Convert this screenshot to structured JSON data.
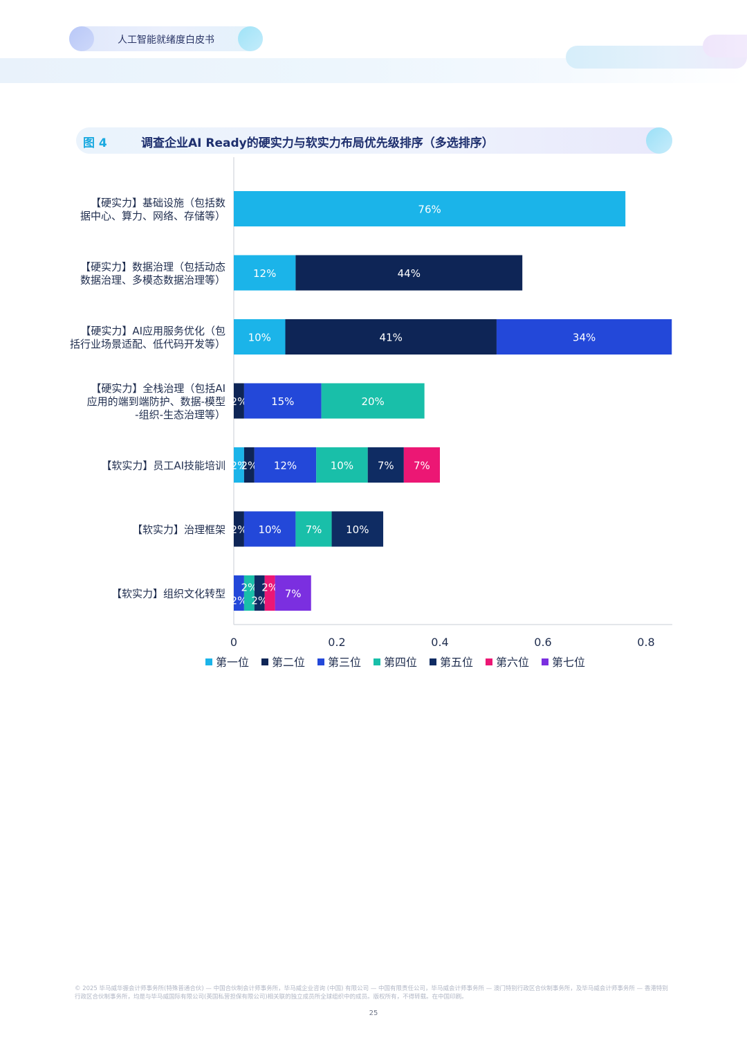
{
  "header": {
    "title": "人工智能就绪度白皮书"
  },
  "figure": {
    "label": "图 4",
    "title": "调查企业AI Ready的硬实力与软实力布局优先级排序（多选排序）"
  },
  "colors": {
    "series": [
      "#1bb4e9",
      "#0e2556",
      "#2348d9",
      "#19bfa9",
      "#0f2c63",
      "#ec1774",
      "#7b2fe0"
    ],
    "label_text": "#ffffff",
    "axis_text": "#1f2d4e",
    "axis_line": "#c9ccd4"
  },
  "chart_data": {
    "type": "bar",
    "orientation": "horizontal",
    "stacked": true,
    "categories": [
      [
        "【硬实力】基础设施（包括数",
        "据中心、算力、网络、存储等）"
      ],
      [
        "【硬实力】数据治理（包括动态",
        "数据治理、多模态数据治理等）"
      ],
      [
        "【硬实力】AI应用服务优化（包",
        "括行业场景适配、低代码开发等）"
      ],
      [
        "【硬实力】全栈治理（包括AI",
        "应用的端到端防护、数据-模型",
        "-组织-生态治理等）"
      ],
      [
        "【软实力】员工AI技能培训"
      ],
      [
        "【软实力】治理框架"
      ],
      [
        "【软实力】组织文化转型"
      ]
    ],
    "series": [
      {
        "name": "第一位",
        "values": [
          0.76,
          0.12,
          0.1,
          0,
          0.02,
          0,
          0
        ],
        "labels": [
          "76%",
          "12%",
          "10%",
          "",
          "2%",
          "",
          ""
        ]
      },
      {
        "name": "第二位",
        "values": [
          0,
          0.44,
          0.41,
          0.02,
          0.02,
          0.02,
          0
        ],
        "labels": [
          "",
          "44%",
          "41%",
          "2%",
          "2%",
          "2%",
          ""
        ]
      },
      {
        "name": "第三位",
        "values": [
          0,
          0,
          0.34,
          0.15,
          0.12,
          0.1,
          0.02
        ],
        "labels": [
          "",
          "",
          "34%",
          "15%",
          "12%",
          "10%",
          "2%"
        ]
      },
      {
        "name": "第四位",
        "values": [
          0,
          0,
          0,
          0.2,
          0.1,
          0.07,
          0.02
        ],
        "labels": [
          "",
          "",
          "",
          "20%",
          "10%",
          "7%",
          "2%"
        ]
      },
      {
        "name": "第五位",
        "values": [
          0,
          0,
          0,
          0,
          0.07,
          0.1,
          0.02
        ],
        "labels": [
          "",
          "",
          "",
          "",
          "7%",
          "10%",
          "2%"
        ]
      },
      {
        "name": "第六位",
        "values": [
          0,
          0,
          0,
          0,
          0.07,
          0,
          0.02
        ],
        "labels": [
          "",
          "",
          "",
          "",
          "7%",
          "",
          "2%"
        ]
      },
      {
        "name": "第七位",
        "values": [
          0,
          0,
          0,
          0,
          0,
          0,
          0.07
        ],
        "labels": [
          "",
          "",
          "",
          "",
          "",
          "",
          "7%"
        ]
      }
    ],
    "xlim": [
      0,
      0.8
    ],
    "xticks": [
      0,
      0.2,
      0.4,
      0.6,
      0.8
    ],
    "xtick_labels": [
      "0",
      "0.2",
      "0.4",
      "0.6",
      "0.8"
    ],
    "legend_position": "bottom",
    "grid": false
  },
  "footer": {
    "text": "© 2025 毕马威华振会计师事务所(特殊普通合伙) — 中国合伙制会计师事务所，毕马威企业咨询 (中国) 有限公司 — 中国有限责任公司，毕马威会计师事务所 — 澳门特别行政区合伙制事务所，及毕马威会计师事务所 — 香港特别行政区合伙制事务所，均是与毕马威国际有限公司(英国私营担保有限公司)相关联的独立成员所全球组织中的成员。版权所有，不得转载。在中国印刷。",
    "page_number": "25"
  }
}
